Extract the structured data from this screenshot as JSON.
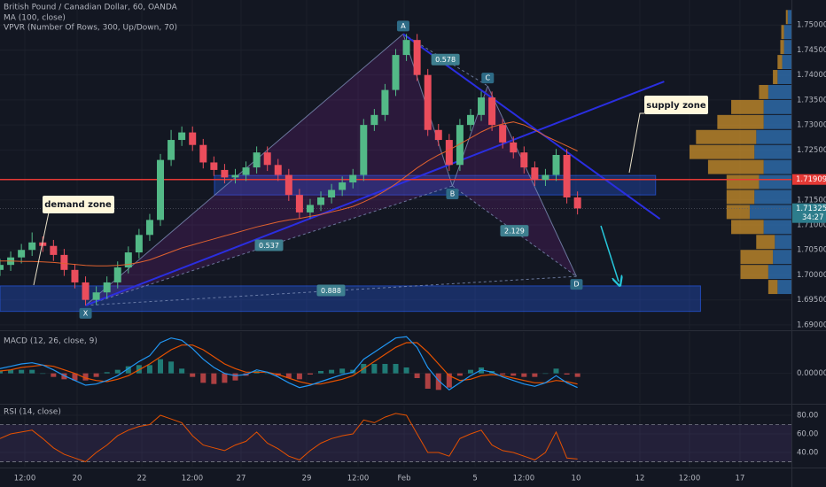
{
  "chart_data": [
    {
      "type": "candlestick",
      "title": "British Pound / Canadian Dollar, 60, OANDA",
      "indicators": [
        "MA (100, close)",
        "VPVR (Number Of Rows, 300, Up/Down, 70)"
      ],
      "x": [
        0,
        1,
        2,
        3,
        4,
        5,
        6,
        7,
        8,
        9,
        10,
        11,
        12,
        13,
        14,
        15,
        16,
        17,
        18,
        19,
        20,
        21,
        22,
        23,
        24,
        25,
        26,
        27,
        28,
        29,
        30,
        31,
        32,
        33,
        34,
        35,
        36,
        37,
        38,
        39,
        40,
        41,
        42,
        43,
        44,
        45,
        46,
        47,
        48,
        49,
        50,
        51,
        52,
        53,
        54
      ],
      "open": [
        1.701,
        1.702,
        1.7035,
        1.705,
        1.7065,
        1.7058,
        1.704,
        1.701,
        1.6985,
        1.695,
        1.6965,
        1.6985,
        1.7015,
        1.7045,
        1.708,
        1.711,
        1.723,
        1.727,
        1.7285,
        1.726,
        1.7225,
        1.721,
        1.7195,
        1.72,
        1.7215,
        1.7245,
        1.722,
        1.72,
        1.716,
        1.7125,
        1.714,
        1.7155,
        1.717,
        1.7185,
        1.72,
        1.73,
        1.732,
        1.737,
        1.744,
        1.747,
        1.74,
        1.729,
        1.727,
        1.722,
        1.73,
        1.732,
        1.7355,
        1.73,
        1.7265,
        1.7245,
        1.7215,
        1.719,
        1.72,
        1.724,
        1.7155
      ],
      "high": [
        1.7032,
        1.7047,
        1.7062,
        1.7085,
        1.7077,
        1.707,
        1.7052,
        1.7022,
        1.6997,
        1.6977,
        1.6997,
        1.7027,
        1.7057,
        1.7092,
        1.7122,
        1.7242,
        1.729,
        1.7297,
        1.7297,
        1.7272,
        1.7237,
        1.7222,
        1.7212,
        1.7227,
        1.7257,
        1.7257,
        1.7232,
        1.7212,
        1.7172,
        1.7152,
        1.7167,
        1.7182,
        1.7197,
        1.7212,
        1.7312,
        1.7332,
        1.7382,
        1.7452,
        1.7482,
        1.7482,
        1.7412,
        1.7302,
        1.7282,
        1.7312,
        1.7332,
        1.7367,
        1.7367,
        1.7312,
        1.7277,
        1.7257,
        1.7227,
        1.7212,
        1.7252,
        1.7252,
        1.7167
      ],
      "low": [
        1.6998,
        1.7008,
        1.7023,
        1.7038,
        1.7046,
        1.7028,
        1.6998,
        1.6973,
        1.6939,
        1.694,
        1.6953,
        1.6973,
        1.7003,
        1.7033,
        1.7068,
        1.7098,
        1.7218,
        1.7258,
        1.7248,
        1.7213,
        1.7198,
        1.7183,
        1.7183,
        1.7188,
        1.7203,
        1.7208,
        1.7188,
        1.7148,
        1.7113,
        1.7113,
        1.7128,
        1.7143,
        1.7158,
        1.7173,
        1.7188,
        1.7288,
        1.7308,
        1.7358,
        1.7428,
        1.7388,
        1.7278,
        1.7258,
        1.7208,
        1.7208,
        1.7288,
        1.7308,
        1.7288,
        1.7253,
        1.7233,
        1.7203,
        1.7178,
        1.7178,
        1.7188,
        1.7143,
        1.7121
      ],
      "close": [
        1.702,
        1.7035,
        1.705,
        1.7065,
        1.7058,
        1.704,
        1.701,
        1.6985,
        1.695,
        1.6965,
        1.6985,
        1.7015,
        1.7045,
        1.708,
        1.711,
        1.723,
        1.727,
        1.7285,
        1.726,
        1.7225,
        1.721,
        1.7195,
        1.72,
        1.7215,
        1.7245,
        1.722,
        1.72,
        1.716,
        1.7125,
        1.714,
        1.7155,
        1.717,
        1.7185,
        1.72,
        1.73,
        1.732,
        1.737,
        1.744,
        1.747,
        1.74,
        1.729,
        1.727,
        1.722,
        1.73,
        1.732,
        1.7355,
        1.73,
        1.7265,
        1.7245,
        1.7215,
        1.719,
        1.72,
        1.724,
        1.7155,
        1.7133
      ],
      "up_color": "#53b987",
      "down_color": "#eb4d5c",
      "ma": {
        "color": "#e0622f",
        "values": [
          1.7028,
          1.7028,
          1.7027,
          1.7027,
          1.7026,
          1.7025,
          1.7023,
          1.7021,
          1.7019,
          1.7018,
          1.7018,
          1.7019,
          1.7021,
          1.7025,
          1.703,
          1.7038,
          1.7046,
          1.7054,
          1.706,
          1.7066,
          1.7072,
          1.7078,
          1.7084,
          1.709,
          1.7096,
          1.7101,
          1.7106,
          1.711,
          1.7113,
          1.7117,
          1.7121,
          1.7126,
          1.7131,
          1.7137,
          1.7146,
          1.7156,
          1.7168,
          1.7182,
          1.7198,
          1.7214,
          1.7228,
          1.724,
          1.725,
          1.7262,
          1.7274,
          1.7286,
          1.7296,
          1.7302,
          1.7306,
          1.73,
          1.729,
          1.7278,
          1.7268,
          1.7258,
          1.7248
        ]
      },
      "xlim": [
        0,
        74
      ],
      "xticks": [
        {
          "value": 2.32,
          "label": "12:00"
        },
        {
          "value": 7.21,
          "label": "20"
        },
        {
          "value": 13.26,
          "label": "22"
        },
        {
          "value": 17.98,
          "label": "12:00"
        },
        {
          "value": 22.54,
          "label": "27"
        },
        {
          "value": 28.67,
          "label": "29"
        },
        {
          "value": 33.48,
          "label": "12:00"
        },
        {
          "value": 37.79,
          "label": "Feb"
        },
        {
          "value": 44.42,
          "label": "5"
        },
        {
          "value": 48.97,
          "label": "12:00"
        },
        {
          "value": 53.86,
          "label": "10"
        },
        {
          "value": 59.83,
          "label": "12"
        },
        {
          "value": 64.47,
          "label": "12:00"
        },
        {
          "value": 69.19,
          "label": "17"
        }
      ],
      "ylim": [
        1.6891,
        1.755
      ],
      "yticks": [
        {
          "value": 1.75,
          "label": "1.75000"
        },
        {
          "value": 1.745,
          "label": "1.74500"
        },
        {
          "value": 1.74,
          "label": "1.74000"
        },
        {
          "value": 1.735,
          "label": "1.73500"
        },
        {
          "value": 1.73,
          "label": "1.73000"
        },
        {
          "value": 1.725,
          "label": "1.72500"
        },
        {
          "value": 1.715,
          "label": "1.71500"
        },
        {
          "value": 1.71,
          "label": "1.71000"
        },
        {
          "value": 1.705,
          "label": "1.70500"
        },
        {
          "value": 1.7,
          "label": "1.70000"
        },
        {
          "value": 1.695,
          "label": "1.69500"
        },
        {
          "value": 1.69,
          "label": "1.69000"
        }
      ],
      "grid": true,
      "hline": {
        "value": 1.71909,
        "label": "1.71909",
        "color": "#e53935"
      },
      "last_price": {
        "value": 1.71325,
        "label": "1.71325",
        "countdown": "34:27",
        "color": "#2d7d8c"
      },
      "volume_profile": {
        "up_color": "#2f6fb0",
        "down_color": "#c28a2a",
        "price": [
          1.696,
          1.699,
          1.702,
          1.705,
          1.708,
          1.711,
          1.714,
          1.717,
          1.72,
          1.723,
          1.726,
          1.729,
          1.732,
          1.735,
          1.738,
          1.741,
          1.744,
          1.747,
          1.75
        ],
        "up": [
          15,
          25,
          20,
          18,
          30,
          45,
          40,
          35,
          30,
          40,
          38,
          30,
          30,
          25,
          15,
          10,
          8,
          8,
          4
        ],
        "down": [
          10,
          30,
          35,
          20,
          35,
          25,
          30,
          35,
          60,
          70,
          65,
          50,
          35,
          10,
          5,
          5,
          4,
          3,
          2
        ]
      },
      "pattern": {
        "fill": "#9c27b0",
        "line_color": "#7e8fb8",
        "points": [
          {
            "label": "X",
            "x": 8.0,
            "price": 1.6939
          },
          {
            "label": "A",
            "x": 37.7,
            "price": 1.7482
          },
          {
            "label": "B",
            "x": 42.3,
            "price": 1.7178
          },
          {
            "label": "C",
            "x": 45.6,
            "price": 1.7378
          },
          {
            "label": "D",
            "x": 53.9,
            "price": 1.6997
          }
        ],
        "ratios": [
          0.578,
          0.537,
          2.129,
          0.888
        ]
      },
      "trendlines": {
        "color": "#2a2ee0",
        "lines": [
          {
            "x": [
              8.0,
              62.1
            ],
            "price": [
              1.6939,
              1.7387
            ]
          },
          {
            "x": [
              37.7,
              61.7
            ],
            "price": [
              1.7482,
              1.7112
            ]
          }
        ]
      },
      "zones": {
        "color": "#2962ff",
        "boxes": [
          {
            "x": [
              20.05,
              61.3
            ],
            "price": [
              1.716,
              1.7199
            ]
          },
          {
            "x": [
              0,
              65.5
            ],
            "price": [
              1.6927,
              1.6978
            ]
          }
        ]
      },
      "annotations": [
        "supply zone",
        "demand zone"
      ]
    },
    {
      "type": "macd",
      "title": "MACD (12, 26, close, 9)",
      "macd": {
        "color": "#2196f3",
        "values": [
          0.0004,
          0.0006,
          0.0008,
          0.0009,
          0.0007,
          0.0003,
          -0.0002,
          -0.0006,
          -0.001,
          -0.0009,
          -0.0006,
          -0.0002,
          0.0004,
          0.001,
          0.0015,
          0.0026,
          0.003,
          0.0028,
          0.0021,
          0.0012,
          0.0005,
          0.0,
          -0.0002,
          -0.0001,
          0.0003,
          0.0001,
          -0.0003,
          -0.0008,
          -0.0012,
          -0.001,
          -0.0007,
          -0.0004,
          -0.0001,
          0.0001,
          0.0012,
          0.0018,
          0.0024,
          0.003,
          0.0031,
          0.0022,
          0.0005,
          -0.0006,
          -0.0014,
          -0.0008,
          -0.0002,
          0.0003,
          0.0001,
          -0.0003,
          -0.0006,
          -0.0009,
          -0.0011,
          -0.0008,
          -0.0002,
          -0.0008,
          -0.0012
        ]
      },
      "signal": {
        "color": "#e65100",
        "values": [
          0.0002,
          0.0003,
          0.0005,
          0.0006,
          0.0007,
          0.0006,
          0.0003,
          0.0,
          -0.0004,
          -0.0006,
          -0.0007,
          -0.0005,
          -0.0002,
          0.0003,
          0.0008,
          0.0014,
          0.002,
          0.0024,
          0.0024,
          0.002,
          0.0014,
          0.0008,
          0.0004,
          0.0001,
          0.0001,
          0.0001,
          -0.0001,
          -0.0004,
          -0.0007,
          -0.0009,
          -0.0009,
          -0.0007,
          -0.0005,
          -0.0002,
          0.0004,
          0.001,
          0.0016,
          0.0022,
          0.0026,
          0.0026,
          0.0018,
          0.0008,
          -0.0002,
          -0.0006,
          -0.0005,
          -0.0002,
          -0.0001,
          -0.0002,
          -0.0004,
          -0.0006,
          -0.0008,
          -0.0008,
          -0.0006,
          -0.0007,
          -0.0009
        ]
      },
      "histogram": {
        "up_color": "#26a69a",
        "down_color": "#ef5350",
        "values": [
          0.0002,
          0.0003,
          0.0003,
          0.0003,
          0.0,
          -0.0003,
          -0.0005,
          -0.0006,
          -0.0006,
          -0.0003,
          0.0001,
          0.0003,
          0.0006,
          0.0007,
          0.0007,
          0.0012,
          0.001,
          0.0004,
          -0.0003,
          -0.0008,
          -0.0009,
          -0.0008,
          -0.0006,
          -0.0002,
          0.0002,
          0.0,
          -0.0002,
          -0.0004,
          -0.0005,
          -0.0001,
          0.0002,
          0.0003,
          0.0004,
          0.0003,
          0.0008,
          0.0008,
          0.0008,
          0.0008,
          0.0005,
          -0.0004,
          -0.0013,
          -0.0014,
          -0.0012,
          -0.0002,
          0.0003,
          0.0005,
          0.0002,
          -0.0001,
          -0.0002,
          -0.0003,
          -0.0003,
          0.0,
          0.0004,
          -0.0001,
          -0.0003
        ]
      },
      "ylim": [
        -0.0025,
        0.0035
      ],
      "yticks": [
        {
          "value": 0,
          "label": "0.00000"
        }
      ]
    },
    {
      "type": "rsi",
      "title": "RSI (14, close)",
      "color": "#e65100",
      "values": [
        55,
        60,
        62,
        64,
        55,
        45,
        38,
        34,
        30,
        40,
        48,
        58,
        64,
        68,
        70,
        80,
        76,
        72,
        58,
        48,
        45,
        42,
        48,
        52,
        62,
        50,
        44,
        36,
        32,
        42,
        50,
        55,
        58,
        60,
        75,
        72,
        78,
        82,
        80,
        60,
        40,
        40,
        36,
        55,
        60,
        64,
        48,
        42,
        40,
        36,
        32,
        40,
        62,
        34,
        33
      ],
      "ylim": [
        24.8,
        90.5
      ],
      "yticks": [
        {
          "value": 80,
          "label": "80.00"
        },
        {
          "value": 60,
          "label": "60.00"
        },
        {
          "value": 40,
          "label": "40.00"
        }
      ],
      "bands": [
        70,
        30
      ],
      "band_color": "#7e57c2"
    }
  ]
}
